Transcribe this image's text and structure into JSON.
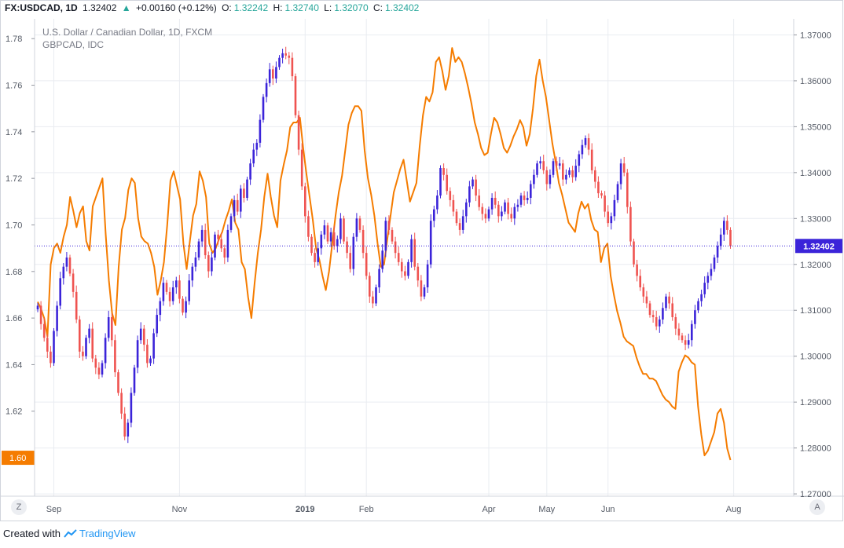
{
  "header": {
    "symbol": "FX:USDCAD, 1D",
    "last": "1.32402",
    "change": "+0.00160 (+0.12%)",
    "o_label": "O:",
    "o_val": "1.32242",
    "h_label": "H:",
    "h_val": "1.32740",
    "l_label": "L:",
    "l_val": "1.32070",
    "c_label": "C:",
    "c_val": "1.32402"
  },
  "legend": {
    "main": "U.S. Dollar / Canadian Dollar, 1D, FXCM",
    "compare": "GBPCAD, IDC"
  },
  "footer": {
    "created_with": "Created with",
    "brand": "TradingView"
  },
  "buttons": {
    "zoom": "Z",
    "auto": "A"
  },
  "colors": {
    "up": "#3b24d9",
    "down": "#ef5350",
    "line": "#f57c00",
    "grid": "#e9ecf1",
    "axis_text": "#555b66",
    "last_price_bg": "#3b24d9",
    "left_badge_bg": "#f57c00"
  },
  "chart_data": {
    "type": "candlestick+line",
    "right_axis": {
      "series": "USDCAD",
      "ticks": [
        "1.37000",
        "1.36000",
        "1.35000",
        "1.34000",
        "1.33000",
        "1.32000",
        "1.31000",
        "1.30000",
        "1.29000",
        "1.28000",
        "1.27000"
      ],
      "range": [
        1.2695,
        1.3735
      ],
      "last_price_label": "1.32402",
      "last_price": 1.32402
    },
    "left_axis": {
      "series": "GBPCAD",
      "ticks": [
        "1.78",
        "1.76",
        "1.74",
        "1.72",
        "1.70",
        "1.68",
        "1.66",
        "1.64",
        "1.62"
      ],
      "range": [
        1.5835,
        1.7885
      ],
      "last_value_label": "1.60",
      "last_value": 1.6
    },
    "x_ticks": [
      "Sep",
      "Nov",
      "2019",
      "Feb",
      "Apr",
      "May",
      "Jun",
      "Aug"
    ],
    "x_tick_index": [
      5,
      44,
      83,
      102,
      140,
      158,
      177,
      216
    ],
    "usdcad_close": [
      1.311,
      1.307,
      1.304,
      1.301,
      1.2985,
      1.3055,
      1.311,
      1.317,
      1.3195,
      1.3215,
      1.318,
      1.314,
      1.308,
      1.301,
      1.3,
      1.304,
      1.306,
      1.2995,
      1.2975,
      1.296,
      1.2985,
      1.304,
      1.3085,
      1.3035,
      1.2965,
      1.292,
      1.2875,
      1.2825,
      1.2855,
      1.292,
      1.2975,
      1.3035,
      1.306,
      1.3025,
      1.2985,
      1.2995,
      1.305,
      1.309,
      1.312,
      1.316,
      1.314,
      1.312,
      1.315,
      1.3165,
      1.3125,
      1.3095,
      1.312,
      1.3165,
      1.3195,
      1.3215,
      1.325,
      1.3275,
      1.322,
      1.3185,
      1.3215,
      1.3265,
      1.3255,
      1.3235,
      1.3215,
      1.3275,
      1.3305,
      1.334,
      1.3315,
      1.3365,
      1.3345,
      1.3385,
      1.342,
      1.345,
      1.3465,
      1.3515,
      1.3565,
      1.3595,
      1.3625,
      1.3605,
      1.363,
      1.365,
      1.366,
      1.3655,
      1.365,
      1.361,
      1.3525,
      1.345,
      1.337,
      1.3305,
      1.326,
      1.3225,
      1.3205,
      1.3235,
      1.3265,
      1.3285,
      1.325,
      1.327,
      1.324,
      1.3255,
      1.33,
      1.325,
      1.3225,
      1.319,
      1.326,
      1.33,
      1.3275,
      1.3225,
      1.3175,
      1.313,
      1.3115,
      1.315,
      1.319,
      1.323,
      1.3295,
      1.3275,
      1.325,
      1.3225,
      1.3205,
      1.3185,
      1.3175,
      1.3205,
      1.3255,
      1.3195,
      1.3165,
      1.313,
      1.315,
      1.32,
      1.3295,
      1.332,
      1.335,
      1.341,
      1.3395,
      1.336,
      1.334,
      1.3315,
      1.329,
      1.3275,
      1.3305,
      1.3335,
      1.337,
      1.3385,
      1.335,
      1.3325,
      1.331,
      1.33,
      1.332,
      1.3345,
      1.333,
      1.3305,
      1.3315,
      1.3335,
      1.331,
      1.33,
      1.3325,
      1.333,
      1.335,
      1.334,
      1.3345,
      1.3375,
      1.3395,
      1.342,
      1.3425,
      1.3405,
      1.3375,
      1.3395,
      1.3425,
      1.3415,
      1.342,
      1.3385,
      1.3395,
      1.3405,
      1.339,
      1.3415,
      1.344,
      1.346,
      1.3475,
      1.345,
      1.3405,
      1.338,
      1.3355,
      1.335,
      1.3315,
      1.329,
      1.3305,
      1.334,
      1.3375,
      1.342,
      1.34,
      1.3325,
      1.325,
      1.32,
      1.3175,
      1.315,
      1.313,
      1.3115,
      1.309,
      1.3085,
      1.3065,
      1.308,
      1.3105,
      1.313,
      1.3115,
      1.3085,
      1.306,
      1.3045,
      1.3035,
      1.3025,
      1.3035,
      1.307,
      1.31,
      1.312,
      1.3135,
      1.316,
      1.3175,
      1.319,
      1.3215,
      1.324,
      1.3265,
      1.3295,
      1.3275,
      1.324
    ],
    "gbpcad": [
      1.667,
      1.664,
      1.66,
      1.652,
      1.683,
      1.69,
      1.692,
      1.688,
      1.695,
      1.7,
      1.712,
      1.706,
      1.699,
      1.705,
      1.708,
      1.693,
      1.689,
      1.708,
      1.712,
      1.716,
      1.72,
      1.696,
      1.676,
      1.662,
      1.657,
      1.682,
      1.698,
      1.703,
      1.715,
      1.72,
      1.718,
      1.703,
      1.695,
      1.693,
      1.692,
      1.688,
      1.682,
      1.67,
      1.676,
      1.684,
      1.7,
      1.719,
      1.723,
      1.717,
      1.711,
      1.692,
      1.681,
      1.693,
      1.704,
      1.709,
      1.723,
      1.719,
      1.712,
      1.692,
      1.688,
      1.69,
      1.694,
      1.697,
      1.702,
      1.706,
      1.711,
      1.701,
      1.698,
      1.684,
      1.681,
      1.669,
      1.66,
      1.675,
      1.688,
      1.698,
      1.712,
      1.722,
      1.712,
      1.704,
      1.699,
      1.719,
      1.726,
      1.732,
      1.742,
      1.744,
      1.744,
      1.746,
      1.733,
      1.722,
      1.712,
      1.702,
      1.69,
      1.685,
      1.678,
      1.672,
      1.68,
      1.692,
      1.704,
      1.714,
      1.721,
      1.732,
      1.743,
      1.748,
      1.751,
      1.751,
      1.749,
      1.732,
      1.72,
      1.713,
      1.704,
      1.692,
      1.682,
      1.683,
      1.694,
      1.704,
      1.714,
      1.719,
      1.724,
      1.728,
      1.719,
      1.71,
      1.714,
      1.718,
      1.734,
      1.747,
      1.755,
      1.753,
      1.757,
      1.77,
      1.772,
      1.766,
      1.758,
      1.764,
      1.776,
      1.77,
      1.772,
      1.77,
      1.765,
      1.759,
      1.752,
      1.744,
      1.739,
      1.733,
      1.73,
      1.731,
      1.739,
      1.746,
      1.744,
      1.739,
      1.733,
      1.731,
      1.734,
      1.738,
      1.741,
      1.745,
      1.742,
      1.734,
      1.739,
      1.75,
      1.764,
      1.771,
      1.762,
      1.755,
      1.745,
      1.735,
      1.727,
      1.718,
      1.713,
      1.707,
      1.701,
      1.699,
      1.697,
      1.705,
      1.71,
      1.707,
      1.709,
      1.702,
      1.698,
      1.697,
      1.684,
      1.69,
      1.692,
      1.678,
      1.67,
      1.663,
      1.658,
      1.652,
      1.65,
      1.649,
      1.648,
      1.643,
      1.639,
      1.636,
      1.636,
      1.634,
      1.634,
      1.633,
      1.63,
      1.627,
      1.625,
      1.624,
      1.622,
      1.621,
      1.637,
      1.641,
      1.644,
      1.643,
      1.641,
      1.64,
      1.622,
      1.61,
      1.601,
      1.603,
      1.607,
      1.611,
      1.619,
      1.621,
      1.615,
      1.604,
      1.599
    ]
  }
}
